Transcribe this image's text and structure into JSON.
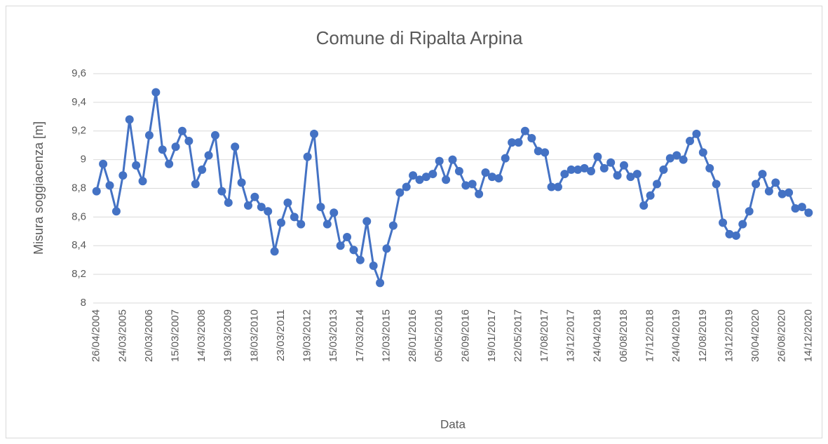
{
  "chart_data": {
    "type": "line",
    "title": "Comune di Ripalta Arpina",
    "y_label": "Misura soggiacenza [m]",
    "x_label": "Data",
    "categories": [
      "26/04/2004",
      null,
      null,
      null,
      "24/03/2005",
      null,
      null,
      null,
      "20/03/2006",
      null,
      null,
      null,
      "15/03/2007",
      null,
      null,
      null,
      "14/03/2008",
      null,
      null,
      null,
      "19/03/2009",
      null,
      null,
      null,
      "18/03/2010",
      null,
      null,
      null,
      "23/03/2011",
      null,
      null,
      null,
      "19/03/2012",
      null,
      null,
      null,
      "15/03/2013",
      null,
      null,
      null,
      "17/03/2014",
      null,
      null,
      null,
      "12/03/2015",
      null,
      null,
      null,
      "28/01/2016",
      null,
      null,
      null,
      "05/05/2016",
      null,
      null,
      null,
      "26/09/2016",
      null,
      null,
      null,
      "19/01/2017",
      null,
      null,
      null,
      "22/05/2017",
      null,
      null,
      null,
      "17/08/2017",
      null,
      null,
      null,
      "13/12/2017",
      null,
      null,
      null,
      "24/04/2018",
      null,
      null,
      null,
      "06/08/2018",
      null,
      null,
      null,
      "17/12/2018",
      null,
      null,
      null,
      "24/04/2019",
      null,
      null,
      null,
      "12/08/2019",
      null,
      null,
      null,
      "13/12/2019",
      null,
      null,
      null,
      "30/04/2020",
      null,
      null,
      null,
      "26/08/2020",
      null,
      null,
      null,
      "14/12/2020"
    ],
    "series": [
      {
        "color": "#4472c4",
        "values": [
          8.78,
          8.97,
          8.82,
          8.64,
          8.89,
          9.28,
          8.96,
          8.85,
          9.17,
          9.47,
          9.07,
          8.97,
          9.09,
          9.2,
          9.13,
          8.83,
          8.93,
          9.03,
          9.17,
          8.78,
          8.7,
          9.09,
          8.84,
          8.68,
          8.74,
          8.67,
          8.64,
          8.36,
          8.56,
          8.7,
          8.6,
          8.55,
          9.02,
          9.18,
          8.67,
          8.55,
          8.63,
          8.4,
          8.46,
          8.37,
          8.3,
          8.57,
          8.26,
          8.14,
          8.38,
          8.54,
          8.77,
          8.81,
          8.89,
          8.86,
          8.88,
          8.9,
          8.99,
          8.86,
          9.0,
          8.92,
          8.82,
          8.83,
          8.76,
          8.91,
          8.88,
          8.87,
          9.01,
          9.12,
          9.12,
          9.2,
          9.15,
          9.06,
          9.05,
          8.81,
          8.81,
          8.9,
          8.93,
          8.93,
          8.94,
          8.92,
          9.02,
          8.94,
          8.98,
          8.89,
          8.96,
          8.88,
          8.9,
          8.68,
          8.75,
          8.83,
          8.93,
          9.01,
          9.03,
          9.0,
          9.13,
          9.18,
          9.05,
          8.94,
          8.83,
          8.56,
          8.48,
          8.47,
          8.55,
          8.64,
          8.83,
          8.9,
          8.78,
          8.84,
          8.76,
          8.77,
          8.66,
          8.67,
          8.63
        ]
      }
    ],
    "ylim": [
      8,
      9.6
    ],
    "yticks": [
      8,
      {
        "value": 8.2,
        "label": "8,2"
      },
      {
        "value": 8.4,
        "label": "8,4"
      },
      {
        "value": 8.6,
        "label": "8,6"
      },
      {
        "value": 8.8,
        "label": "8,8"
      },
      9,
      {
        "value": 9.2,
        "label": "9,2"
      },
      {
        "value": 9.4,
        "label": "9,4"
      },
      {
        "value": 9.6,
        "label": "9,6"
      }
    ],
    "grid": true
  }
}
